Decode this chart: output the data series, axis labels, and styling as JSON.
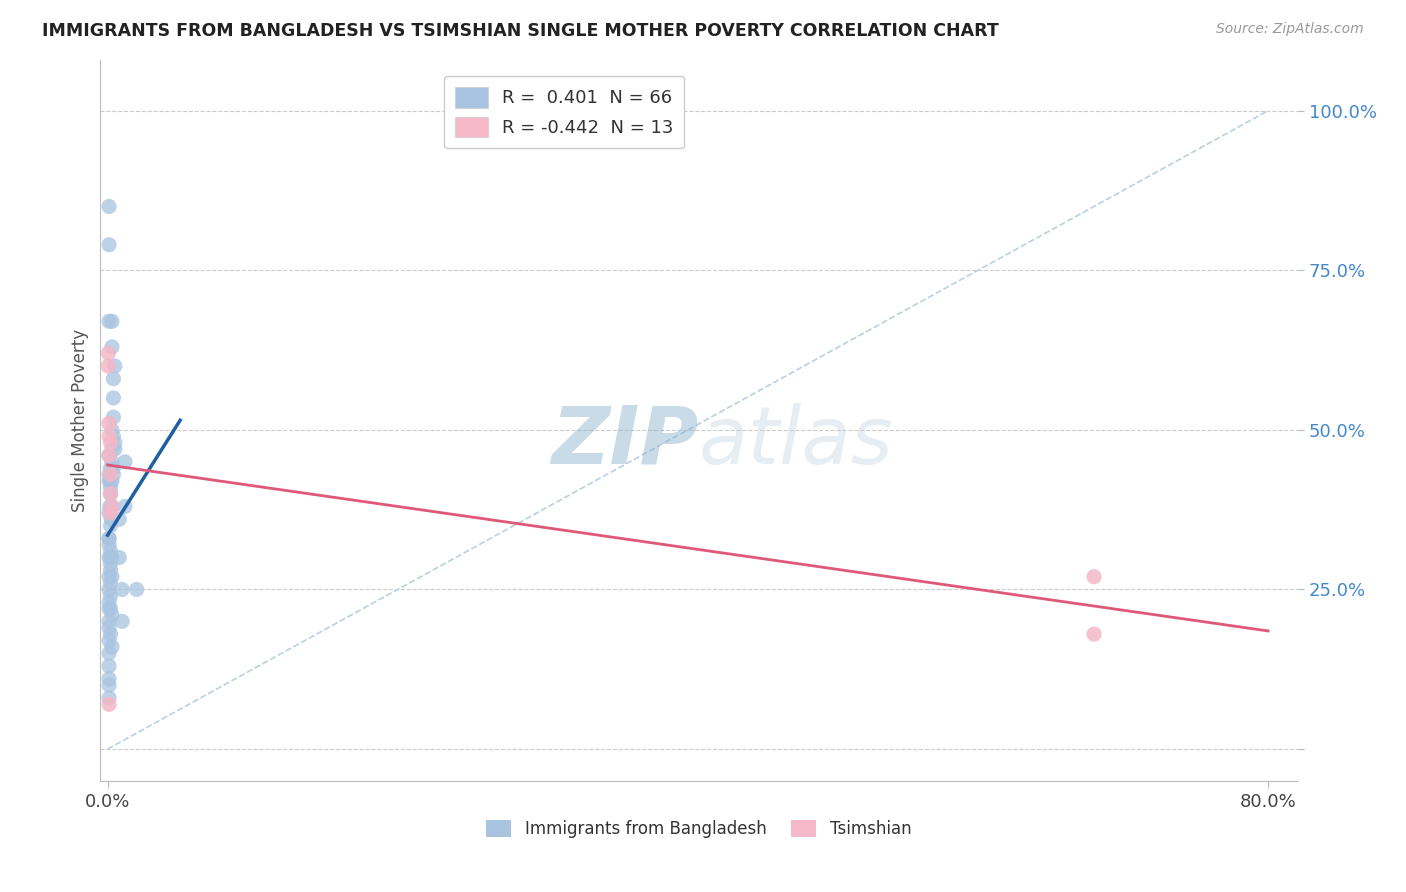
{
  "title": "IMMIGRANTS FROM BANGLADESH VS TSIMSHIAN SINGLE MOTHER POVERTY CORRELATION CHART",
  "source": "Source: ZipAtlas.com",
  "ylabel": "Single Mother Poverty",
  "legend1_label": "R =  0.401  N = 66",
  "legend2_label": "R = -0.442  N = 13",
  "legend1_color": "#a8c4e0",
  "legend2_color": "#f4b8c8",
  "blue_line_color": "#2060a0",
  "pink_line_color": "#e05878",
  "diag_line_color": "#b0cce0",
  "watermark_zip": "ZIP",
  "watermark_atlas": "atlas",
  "background": "#ffffff",
  "blue_scatter": [
    [
      0.1,
      0.3
    ],
    [
      0.1,
      0.22
    ],
    [
      0.1,
      0.33
    ],
    [
      0.2,
      0.4
    ],
    [
      0.1,
      0.42
    ],
    [
      0.2,
      0.44
    ],
    [
      0.3,
      0.47
    ],
    [
      0.1,
      0.46
    ],
    [
      0.2,
      0.42
    ],
    [
      0.3,
      0.45
    ],
    [
      0.4,
      0.43
    ],
    [
      0.2,
      0.4
    ],
    [
      0.15,
      0.38
    ],
    [
      0.25,
      0.36
    ],
    [
      0.3,
      0.38
    ],
    [
      0.4,
      0.44
    ],
    [
      0.5,
      0.48
    ],
    [
      0.3,
      0.5
    ],
    [
      0.4,
      0.49
    ],
    [
      0.5,
      0.47
    ],
    [
      0.2,
      0.35
    ],
    [
      0.1,
      0.43
    ],
    [
      0.2,
      0.41
    ],
    [
      0.3,
      0.42
    ],
    [
      0.1,
      0.37
    ],
    [
      0.2,
      0.3
    ],
    [
      0.1,
      0.27
    ],
    [
      0.2,
      0.26
    ],
    [
      0.3,
      0.3
    ],
    [
      0.1,
      0.32
    ],
    [
      0.2,
      0.28
    ],
    [
      0.1,
      0.23
    ],
    [
      0.2,
      0.29
    ],
    [
      0.3,
      0.27
    ],
    [
      0.1,
      0.2
    ],
    [
      0.2,
      0.18
    ],
    [
      0.1,
      0.15
    ],
    [
      0.3,
      0.21
    ],
    [
      0.1,
      0.33
    ],
    [
      0.2,
      0.31
    ],
    [
      0.1,
      0.25
    ],
    [
      0.2,
      0.24
    ],
    [
      0.1,
      0.19
    ],
    [
      0.1,
      0.17
    ],
    [
      0.2,
      0.22
    ],
    [
      0.3,
      0.16
    ],
    [
      0.1,
      0.13
    ],
    [
      0.1,
      0.11
    ],
    [
      0.1,
      0.08
    ],
    [
      0.1,
      0.1
    ],
    [
      0.4,
      0.55
    ],
    [
      0.4,
      0.52
    ],
    [
      0.5,
      0.6
    ],
    [
      0.4,
      0.58
    ],
    [
      0.8,
      0.36
    ],
    [
      0.8,
      0.3
    ],
    [
      1.2,
      0.45
    ],
    [
      1.2,
      0.38
    ],
    [
      1.0,
      0.25
    ],
    [
      2.0,
      0.25
    ],
    [
      0.1,
      0.85
    ],
    [
      0.1,
      0.79
    ],
    [
      0.3,
      0.63
    ],
    [
      1.0,
      0.2
    ],
    [
      0.1,
      0.67
    ],
    [
      0.3,
      0.67
    ]
  ],
  "pink_scatter": [
    [
      0.05,
      0.6
    ],
    [
      0.05,
      0.62
    ],
    [
      0.1,
      0.51
    ],
    [
      0.1,
      0.49
    ],
    [
      0.1,
      0.46
    ],
    [
      0.2,
      0.48
    ],
    [
      0.2,
      0.43
    ],
    [
      0.2,
      0.4
    ],
    [
      0.2,
      0.37
    ],
    [
      0.3,
      0.38
    ],
    [
      68.0,
      0.27
    ],
    [
      68.0,
      0.18
    ],
    [
      0.1,
      0.07
    ]
  ],
  "blue_line_x": [
    0.0,
    5.0
  ],
  "blue_line_y": [
    0.335,
    0.515
  ],
  "pink_line_x": [
    0.0,
    80.0
  ],
  "pink_line_y": [
    0.445,
    0.185
  ],
  "diag_line_x": [
    0.0,
    80.0
  ],
  "diag_line_y": [
    0.0,
    1.0
  ],
  "xlim": [
    -0.5,
    82.0
  ],
  "ylim": [
    -0.05,
    1.08
  ],
  "x_ticks": [
    0.0,
    80.0
  ],
  "x_tick_labels": [
    "0.0%",
    "80.0%"
  ],
  "y_ticks": [
    0.0,
    0.25,
    0.5,
    0.75,
    1.0
  ],
  "y_tick_labels": [
    "",
    "25.0%",
    "50.0%",
    "75.0%",
    "100.0%"
  ]
}
